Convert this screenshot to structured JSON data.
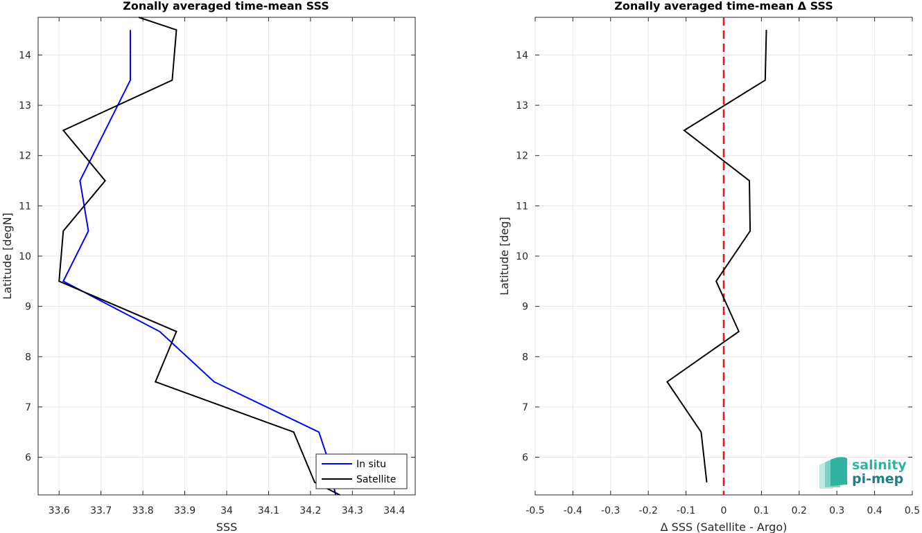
{
  "chart_data": [
    {
      "type": "line",
      "title": "Zonally averaged time-mean SSS",
      "xlabel": "SSS",
      "ylabel": "Latitude [degN]",
      "xlim": [
        33.55,
        34.45
      ],
      "ylim": [
        5.25,
        14.75
      ],
      "xticks": [
        "33.6",
        "33.7",
        "33.8",
        "33.9",
        "34",
        "34.1",
        "34.2",
        "34.3",
        "34.4"
      ],
      "yticks": [
        "6",
        "7",
        "8",
        "9",
        "10",
        "11",
        "12",
        "13",
        "14"
      ],
      "grid": true,
      "legend": "bottom-right",
      "series": [
        {
          "name": "In situ",
          "color": "#0000ff",
          "x": [
            34.26,
            34.24,
            34.22,
            33.97,
            33.84,
            33.61,
            33.67,
            33.65,
            33.77,
            33.77
          ],
          "y": [
            5.25,
            6.0,
            6.5,
            7.5,
            8.5,
            9.5,
            10.5,
            11.5,
            13.5,
            14.5
          ]
        },
        {
          "name": "Satellite",
          "color": "#000000",
          "x": [
            34.27,
            34.21,
            34.16,
            33.83,
            33.88,
            33.6,
            33.61,
            33.71,
            33.61,
            33.87,
            33.88,
            33.79
          ],
          "y": [
            5.25,
            5.5,
            6.5,
            7.5,
            8.5,
            9.5,
            10.5,
            11.5,
            12.5,
            13.5,
            14.5,
            14.75
          ]
        }
      ]
    },
    {
      "type": "line",
      "title": "Zonally averaged time-mean Δ SSS",
      "xlabel": "Δ SSS (Satellite - Argo)",
      "ylabel": "Latitude [deg]",
      "xlim": [
        -0.5,
        0.5
      ],
      "ylim": [
        5.25,
        14.75
      ],
      "xticks": [
        "-0.5",
        "-0.4",
        "-0.3",
        "-0.2",
        "-0.1",
        "0",
        "0.1",
        "0.2",
        "0.3",
        "0.4",
        "0.5"
      ],
      "yticks": [
        "6",
        "7",
        "8",
        "9",
        "10",
        "11",
        "12",
        "13",
        "14"
      ],
      "grid": true,
      "reference_line": {
        "x": 0,
        "color": "#e8141b",
        "style": "dashed"
      },
      "series": [
        {
          "color": "#000000",
          "x": [
            -0.045,
            -0.06,
            -0.15,
            0.04,
            -0.02,
            0.07,
            0.068,
            -0.105,
            0.11,
            0.113
          ],
          "y": [
            5.5,
            6.5,
            7.5,
            8.5,
            9.5,
            10.5,
            11.5,
            12.5,
            13.5,
            14.5
          ]
        }
      ]
    }
  ],
  "logo": {
    "line1": "salinity",
    "line2": "pi-mep"
  }
}
